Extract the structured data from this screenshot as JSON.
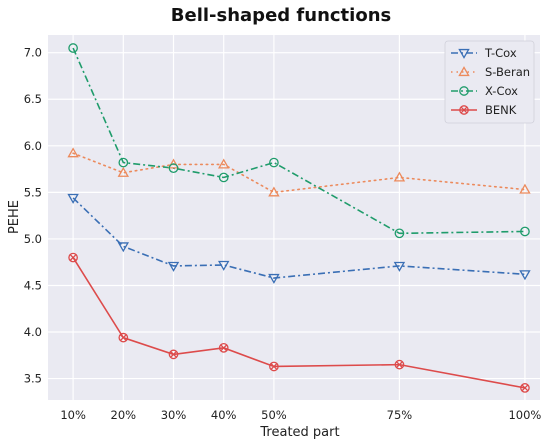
{
  "chart_data": {
    "type": "line",
    "title": "Bell-shaped functions",
    "xlabel": "Treated part",
    "ylabel": "PEHE",
    "x": [
      10,
      20,
      30,
      40,
      50,
      75,
      100
    ],
    "categories": [
      "10%",
      "20%",
      "30%",
      "40%",
      "50%",
      "75%",
      "100%"
    ],
    "xlim": [
      5,
      103
    ],
    "ylim": [
      3.27,
      7.19
    ],
    "yticks": [
      "3.5",
      "4.0",
      "4.5",
      "5.0",
      "5.5",
      "6.0",
      "6.5",
      "7.0"
    ],
    "grid": true,
    "legend_position": "top-right",
    "series": [
      {
        "name": "T-Cox",
        "color": "#3a6fb5",
        "marker": "triangle-down",
        "linestyle": "dashdot",
        "values": [
          5.44,
          4.92,
          4.71,
          4.72,
          4.58,
          4.71,
          4.62
        ]
      },
      {
        "name": "S-Beran",
        "color": "#ec8a5c",
        "marker": "triangle-up",
        "linestyle": "dotted",
        "values": [
          5.92,
          5.71,
          5.8,
          5.8,
          5.5,
          5.66,
          5.53
        ]
      },
      {
        "name": "X-Cox",
        "color": "#1f9c6b",
        "marker": "circle",
        "linestyle": "dashdot",
        "values": [
          7.05,
          5.82,
          5.76,
          5.66,
          5.82,
          5.06,
          5.08
        ]
      },
      {
        "name": "BENK",
        "color": "#dd4b4b",
        "marker": "circle-x",
        "linestyle": "solid",
        "values": [
          4.8,
          3.94,
          3.76,
          3.83,
          3.63,
          3.65,
          3.4
        ]
      }
    ]
  }
}
